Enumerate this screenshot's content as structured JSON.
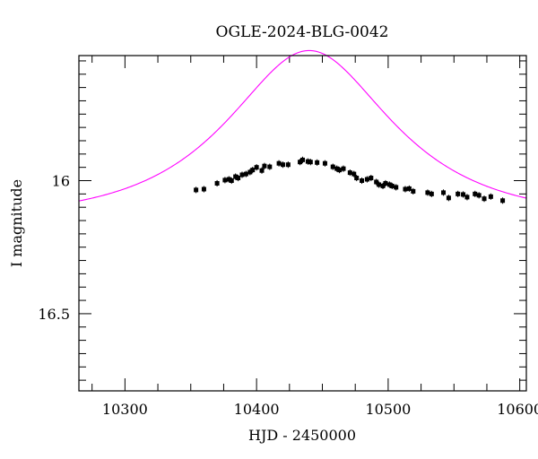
{
  "chart_data": {
    "type": "scatter",
    "title": "OGLE-2024-BLG-0042",
    "xlabel": "HJD - 2450000",
    "ylabel": "I magnitude",
    "xlim": [
      10265,
      10605
    ],
    "ylim": [
      16.79,
      15.53
    ],
    "y_inverted": true,
    "grid": false,
    "x_ticks_labeled": [
      10300,
      10400,
      10500,
      10600
    ],
    "x_tick_labels": [
      "10300",
      "10400",
      "10500",
      "10600"
    ],
    "y_ticks_labeled": [
      16,
      16.5
    ],
    "y_tick_labels": [
      "16",
      "16.5"
    ],
    "colors": {
      "data": "#000000",
      "model": "#ff00ff",
      "frame": "#000000"
    },
    "series": [
      {
        "kind": "points_with_errorbars",
        "x": [
          10354,
          10360,
          10370,
          10376,
          10379,
          10381,
          10384,
          10386,
          10389,
          10392,
          10395,
          10397,
          10400,
          10404,
          10406,
          10410,
          10417,
          10420,
          10424,
          10433,
          10435,
          10439,
          10441,
          10446,
          10452,
          10458,
          10461,
          10463,
          10466,
          10471,
          10474,
          10476,
          10480,
          10484,
          10487,
          10491,
          10493,
          10496,
          10498,
          10501,
          10503,
          10506,
          10513,
          10516,
          10519,
          10530,
          10533,
          10542,
          10546,
          10553,
          10557,
          10560,
          10566,
          10569,
          10573,
          10578,
          10587
        ],
        "y": [
          16.035,
          16.032,
          16.01,
          15.998,
          15.995,
          16.0,
          15.985,
          15.99,
          15.978,
          15.975,
          15.968,
          15.96,
          15.95,
          15.962,
          15.945,
          15.948,
          15.935,
          15.94,
          15.94,
          15.93,
          15.922,
          15.928,
          15.93,
          15.932,
          15.935,
          15.948,
          15.955,
          15.96,
          15.955,
          15.97,
          15.975,
          15.99,
          16.0,
          15.995,
          15.99,
          16.005,
          16.015,
          16.02,
          16.01,
          16.015,
          16.02,
          16.025,
          16.032,
          16.03,
          16.04,
          16.045,
          16.05,
          16.045,
          16.065,
          16.05,
          16.052,
          16.062,
          16.05,
          16.055,
          16.068,
          16.06,
          16.075
        ],
        "yerr": 0.012
      },
      {
        "kind": "model_curve",
        "model": "point-lens microlensing",
        "t0": 10440,
        "tE": 95,
        "u0": 0.64,
        "baseline_mag": 16.145
      }
    ]
  }
}
